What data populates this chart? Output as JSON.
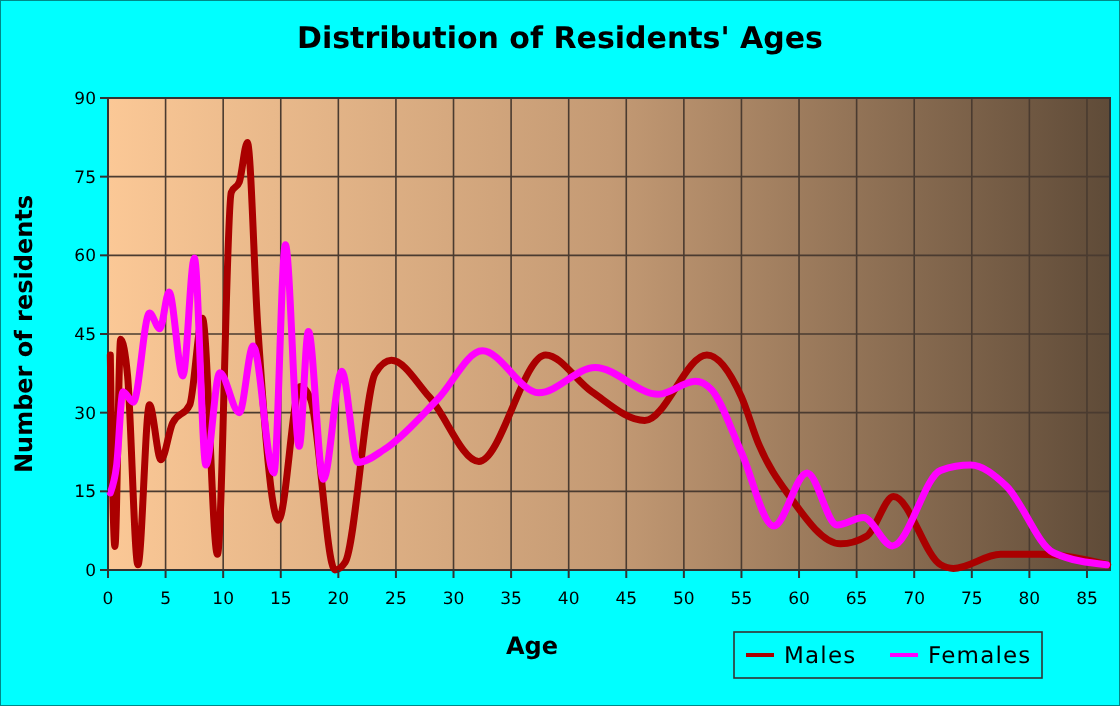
{
  "chart_data": {
    "type": "line",
    "title": "Distribution of Residents' Ages",
    "xlabel": "Age",
    "ylabel": "Number of residents",
    "xlim": [
      0,
      87
    ],
    "xticks": [
      0,
      5,
      10,
      15,
      20,
      25,
      30,
      35,
      40,
      45,
      50,
      55,
      60,
      65,
      70,
      75,
      80,
      85
    ],
    "ylim": [
      0,
      90
    ],
    "yticks": [
      0,
      15,
      30,
      45,
      60,
      75,
      90
    ],
    "grid": true,
    "legend": "bottom right",
    "series": [
      {
        "name": "Males",
        "color": "#aa0000",
        "x": [
          0.2,
          0.6,
          1.1,
          1.7,
          2.6,
          3.6,
          4.6,
          5.6,
          7.1,
          8.2,
          9.5,
          10.7,
          11.4,
          12.1,
          13,
          14.8,
          16.7,
          17.6,
          19.7,
          20.6,
          23.2,
          24.6,
          27.9,
          32.2,
          38,
          42,
          46.6,
          52,
          55,
          56.5,
          59.2,
          63.6,
          65.9,
          68.2,
          72.3,
          73.4,
          77.5,
          80.9,
          86.8
        ],
        "values": [
          41,
          4.5,
          44,
          37,
          1,
          31.5,
          21,
          28,
          31.5,
          48,
          3,
          72,
          74,
          81.5,
          46.5,
          9.5,
          35,
          32.5,
          0,
          1.5,
          37.5,
          40,
          33,
          20.7,
          41,
          34,
          28.5,
          41,
          33,
          24,
          14,
          5,
          6.5,
          14,
          1,
          0.3,
          3,
          3,
          1
        ]
      },
      {
        "name": "Females",
        "color": "#ff00ff",
        "x": [
          0.2,
          0.75,
          1.3,
          2.2,
          3.6,
          4.5,
          5.3,
          6.5,
          7.5,
          8.5,
          9.7,
          11.4,
          12.6,
          14.4,
          15.4,
          16.6,
          17.4,
          18.7,
          20.3,
          21.7,
          24,
          28.6,
          32.5,
          37.4,
          42.3,
          47.8,
          51,
          52.4,
          55,
          57.8,
          60.7,
          63.3,
          65.6,
          68.1,
          72.3,
          74.9,
          78,
          82.1,
          86.7
        ],
        "values": [
          14.7,
          20,
          34,
          32,
          49,
          46,
          53,
          37,
          59.5,
          20,
          37.6,
          30,
          42.7,
          18.5,
          62,
          23.6,
          45.5,
          17.3,
          37.9,
          20.5,
          23,
          32.5,
          41.8,
          33.8,
          38.6,
          33.5,
          36,
          34.4,
          22.4,
          8.4,
          18.5,
          8.6,
          10,
          4.6,
          19,
          20,
          16,
          3.3,
          1
        ]
      }
    ]
  }
}
